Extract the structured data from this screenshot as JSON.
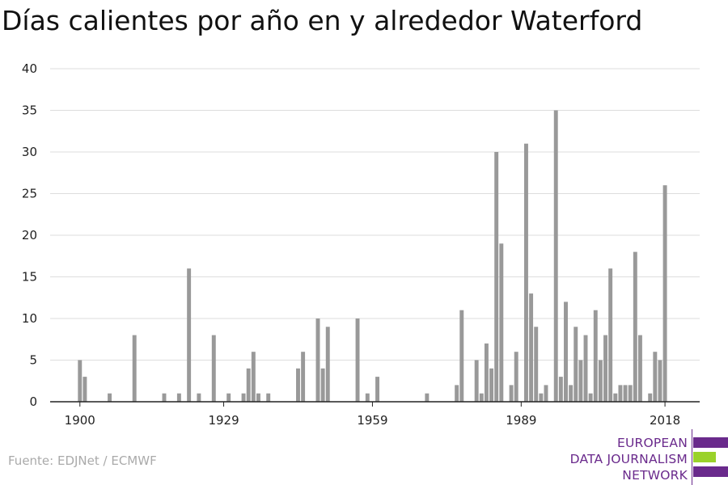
{
  "chart_data": {
    "type": "bar",
    "title": "Días calientes por año en y alrededor Waterford",
    "xlabel": "",
    "ylabel": "",
    "ylim": [
      0,
      40
    ],
    "yticks": [
      0,
      5,
      10,
      15,
      20,
      25,
      30,
      35,
      40
    ],
    "xlim": [
      1894,
      2025
    ],
    "xticks": [
      1900,
      1929,
      1959,
      1989,
      2018
    ],
    "grid": true,
    "bar_color": "#999999",
    "x": [
      1900,
      1901,
      1906,
      1911,
      1917,
      1920,
      1922,
      1924,
      1927,
      1930,
      1933,
      1934,
      1935,
      1936,
      1938,
      1944,
      1945,
      1948,
      1949,
      1950,
      1956,
      1958,
      1960,
      1970,
      1976,
      1977,
      1980,
      1981,
      1982,
      1983,
      1984,
      1985,
      1987,
      1988,
      1990,
      1991,
      1992,
      1993,
      1994,
      1996,
      1997,
      1998,
      1999,
      2000,
      2001,
      2002,
      2003,
      2004,
      2005,
      2006,
      2007,
      2008,
      2009,
      2010,
      2011,
      2012,
      2013,
      2015,
      2016,
      2017,
      2018,
      2019
    ],
    "values": [
      5,
      3,
      1,
      8,
      1,
      1,
      16,
      1,
      8,
      1,
      1,
      4,
      6,
      1,
      1,
      4,
      6,
      10,
      4,
      9,
      10,
      1,
      3,
      1,
      2,
      11,
      5,
      1,
      7,
      4,
      30,
      19,
      2,
      6,
      31,
      13,
      9,
      1,
      2,
      35,
      3,
      12,
      2,
      9,
      5,
      8,
      1,
      11,
      5,
      8,
      16,
      1,
      2,
      2,
      2,
      18,
      8,
      1,
      6,
      5,
      26,
      0
    ]
  },
  "source_text": "Fuente: EDJNet / ECMWF",
  "logo": {
    "lines": [
      "EUROPEAN",
      "DATA JOURNALISM",
      "NETWORK"
    ],
    "purple": "#6a2a8c",
    "green": "#9ad22a"
  }
}
